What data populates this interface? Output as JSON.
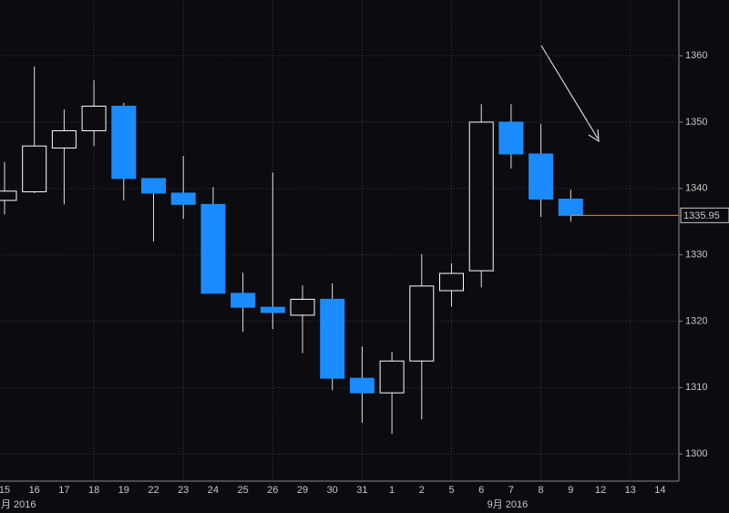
{
  "chart_data": {
    "type": "candlestick",
    "categories": [
      "15",
      "16",
      "17",
      "18",
      "19",
      "22",
      "23",
      "24",
      "25",
      "26",
      "29",
      "30",
      "31",
      "1",
      "2",
      "5",
      "6",
      "7",
      "8",
      "9",
      "12",
      "13",
      "14"
    ],
    "month_labels": [
      {
        "index": 0,
        "label": "月 2016"
      },
      {
        "index": 17,
        "label": "9月 2016"
      }
    ],
    "open": [
      1338.2,
      1339.5,
      1346.1,
      1348.7,
      1352.4,
      1341.5,
      1339.3,
      1337.6,
      1324.2,
      1322.1,
      1320.9,
      1323.3,
      1311.4,
      1309.2,
      1314.0,
      1324.6,
      1327.6,
      1350.0,
      1345.2,
      1338.4,
      null,
      null,
      null
    ],
    "high": [
      1344.0,
      1358.4,
      1351.9,
      1356.3,
      1352.9,
      1341.5,
      1344.9,
      1340.2,
      1327.3,
      1342.4,
      1325.4,
      1325.7,
      1316.2,
      1315.4,
      1330.1,
      1328.7,
      1352.7,
      1352.7,
      1349.7,
      1339.8,
      null,
      null,
      null
    ],
    "low": [
      1336.1,
      1339.3,
      1337.6,
      1346.4,
      1338.2,
      1332.0,
      1335.4,
      1324.2,
      1318.4,
      1318.8,
      1315.2,
      1309.6,
      1304.7,
      1303.0,
      1305.2,
      1322.2,
      1325.1,
      1343.0,
      1335.7,
      1335.0,
      null,
      null,
      null
    ],
    "close": [
      1339.6,
      1346.4,
      1348.7,
      1352.4,
      1341.5,
      1339.3,
      1337.6,
      1324.2,
      1322.1,
      1321.3,
      1323.3,
      1311.4,
      1309.2,
      1314.0,
      1325.3,
      1327.2,
      1350.0,
      1345.2,
      1338.4,
      1335.95,
      null,
      null,
      null
    ],
    "up_color": "#ffffff",
    "down_color": "#1a8cff",
    "last_price": 1335.95,
    "last_price_color": "#e8862a",
    "ylim": [
      1295.9,
      1368.4
    ],
    "yticks": [
      1300,
      1310,
      1320,
      1330,
      1340,
      1350,
      1360
    ],
    "grid": true
  }
}
